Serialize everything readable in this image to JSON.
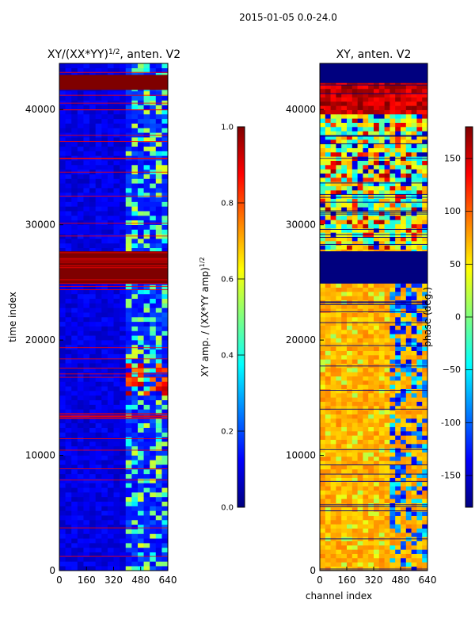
{
  "figure": {
    "suptitle": "2015-01-05 0.0-24.0",
    "xlabel": "channel index",
    "ylabel": "time index"
  },
  "colormap": {
    "name": "jet",
    "stops": [
      "#00007f",
      "#0000ff",
      "#007fff",
      "#00ffff",
      "#7fff7f",
      "#ffff00",
      "#ff7f00",
      "#ff0000",
      "#7f0000"
    ]
  },
  "chart_data": [
    {
      "type": "heatmap",
      "title": "XY/(XX*YY)",
      "title_exponent": "1/2",
      "title_suffix": ", anten. V2",
      "xlabel": "",
      "ylabel": "time index",
      "xlim": [
        0,
        640
      ],
      "ylim": [
        0,
        44000
      ],
      "xticks": [
        0,
        160,
        320,
        480,
        640
      ],
      "xtick_labels": [
        "0",
        "160",
        "320",
        "480",
        "640"
      ],
      "yticks": [
        0,
        10000,
        20000,
        30000,
        40000
      ],
      "ytick_labels": [
        "0",
        "10000",
        "20000",
        "30000",
        "40000"
      ],
      "background_level": 0.08,
      "saturated_time_bands": [
        [
          24900,
          27700
        ],
        [
          41700,
          43000
        ]
      ],
      "active_channel_range": [
        400,
        640
      ],
      "colorbar": {
        "label": "XY amp. / (XX*YY amp)",
        "label_exponent": "1/2",
        "range": [
          0.0,
          1.0
        ],
        "ticks": [
          0.0,
          0.2,
          0.4,
          0.6,
          0.8,
          1.0
        ],
        "tick_labels": [
          "0.0",
          "0.2",
          "0.4",
          "0.6",
          "0.8",
          "1.0"
        ]
      }
    },
    {
      "type": "heatmap",
      "title": "XY, anten. V2",
      "xlabel": "channel index",
      "ylabel": "",
      "xlim": [
        0,
        640
      ],
      "ylim": [
        0,
        44000
      ],
      "xticks": [
        0,
        160,
        320,
        480,
        640
      ],
      "xtick_labels": [
        "0",
        "160",
        "320",
        "480",
        "640"
      ],
      "yticks": [
        0,
        10000,
        20000,
        30000,
        40000
      ],
      "ytick_labels": [
        "0",
        "10000",
        "20000",
        "30000",
        "40000"
      ],
      "background_level_deg": 70,
      "flagged_time_bands": [
        [
          24900,
          27700
        ],
        [
          42300,
          44000
        ]
      ],
      "colorbar": {
        "label": "phase (deg.)",
        "range": [
          -180,
          180
        ],
        "ticks": [
          -150,
          -100,
          -50,
          0,
          50,
          100,
          150
        ],
        "tick_labels": [
          "-150",
          "-100",
          "−50",
          "0",
          "50",
          "100",
          "150"
        ]
      }
    }
  ]
}
